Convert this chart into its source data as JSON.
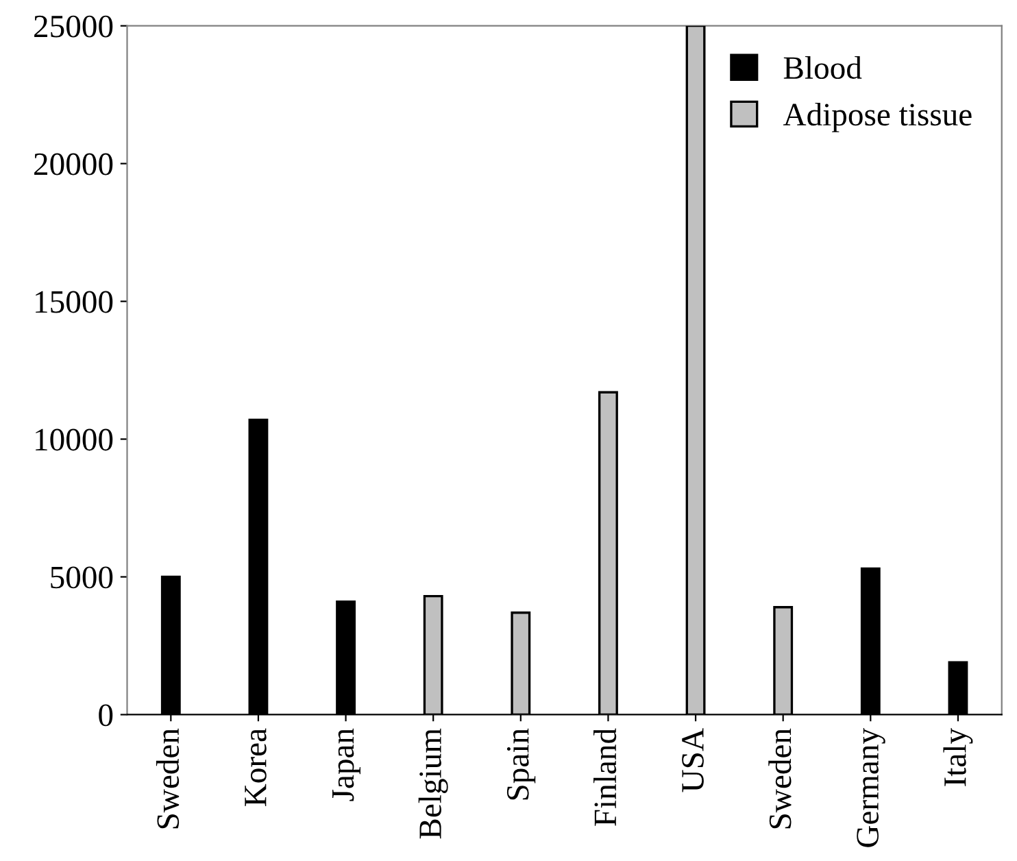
{
  "chart_data": {
    "type": "bar",
    "categories": [
      "Sweden",
      "Korea",
      "Japan",
      "Belgium",
      "Spain",
      "Finland",
      "USA",
      "Sweden",
      "Germany",
      "Italy"
    ],
    "series": [
      {
        "name": "Blood",
        "color": "#000000",
        "values": [
          5000,
          10700,
          4100,
          null,
          null,
          null,
          null,
          null,
          5300,
          1900
        ]
      },
      {
        "name": "Adipose tissue",
        "color": "#c0c0c0",
        "values": [
          null,
          null,
          null,
          4300,
          3700,
          11700,
          25000,
          3900,
          null,
          null
        ]
      }
    ],
    "ylim": [
      0,
      25000
    ],
    "yticks": [
      0,
      5000,
      10000,
      15000,
      20000,
      25000
    ],
    "grid": false,
    "legend": "top right"
  }
}
